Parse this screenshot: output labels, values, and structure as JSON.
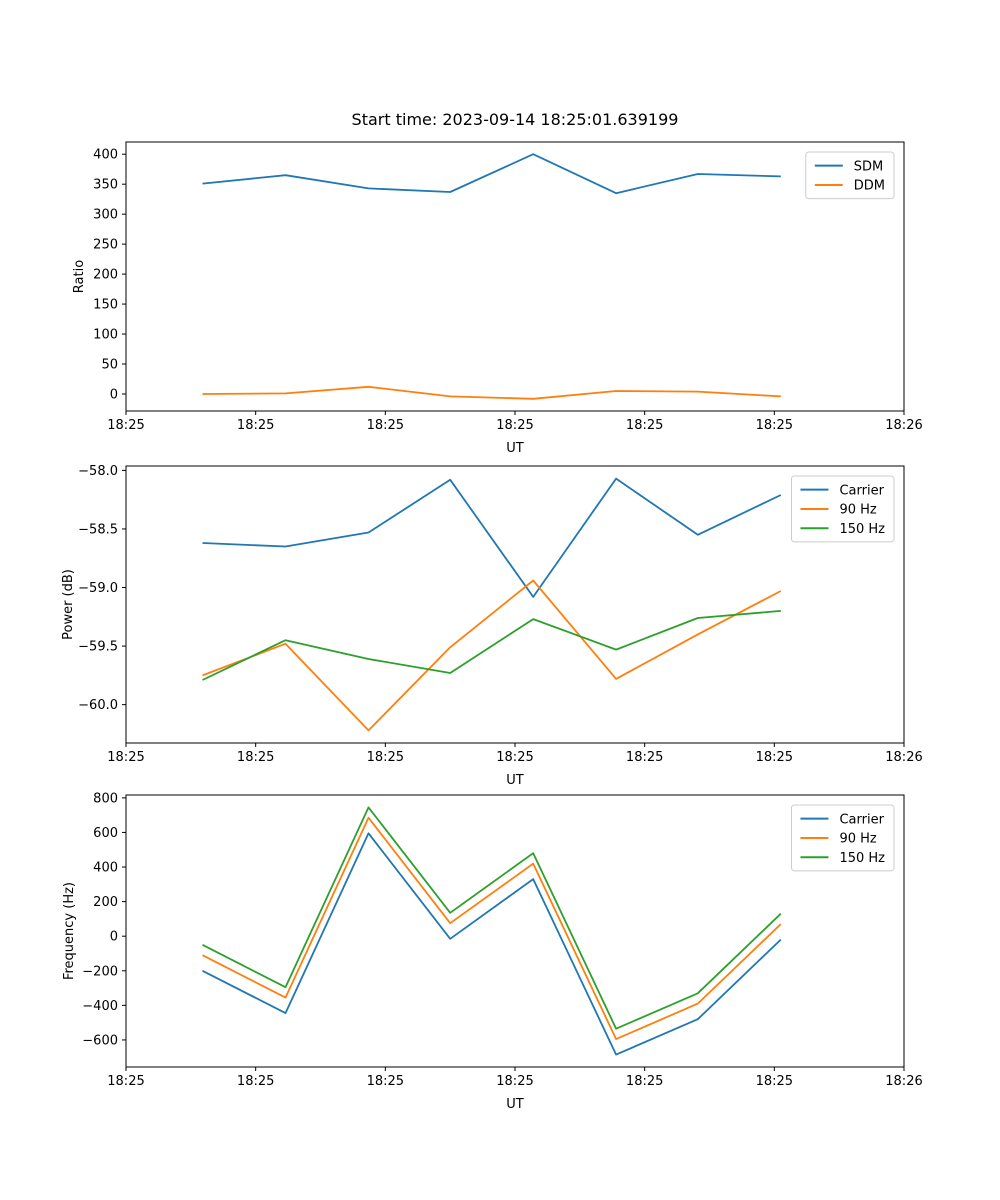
{
  "figure": {
    "title": "Start time: 2023-09-14 18:25:01.639199",
    "background_color": "#ffffff",
    "accent_colors": {
      "blue": "#1f77b4",
      "orange": "#ff7f0e",
      "green": "#2ca02c"
    }
  },
  "chart_data": [
    {
      "type": "line",
      "key": "ratio",
      "title": "Start time: 2023-09-14 18:25:01.639199",
      "xlabel": "UT",
      "ylabel": "Ratio",
      "grid": false,
      "legend_position": "upper right",
      "xlim_seconds": [
        0,
        60
      ],
      "x_tick_seconds": [
        0,
        10,
        20,
        30,
        40,
        50,
        60
      ],
      "x_tick_labels": [
        "18:25",
        "18:25",
        "18:25",
        "18:25",
        "18:25",
        "18:25",
        "18:26"
      ],
      "ylim": [
        -28.4,
        420.4
      ],
      "y_tick_values": [
        0,
        50,
        100,
        150,
        200,
        250,
        300,
        350,
        400
      ],
      "y_tick_labels": [
        "0",
        "50",
        "100",
        "150",
        "200",
        "250",
        "300",
        "350",
        "400"
      ],
      "x_seconds": [
        5.9,
        12.3,
        18.7,
        25.0,
        31.4,
        37.8,
        44.1,
        50.5
      ],
      "series": [
        {
          "name": "SDM",
          "color": "#1f77b4",
          "values": [
            351,
            365,
            343,
            337,
            400,
            335,
            367,
            363
          ]
        },
        {
          "name": "DDM",
          "color": "#ff7f0e",
          "values": [
            0,
            1,
            12,
            -4,
            -8,
            5,
            4,
            -4
          ]
        }
      ],
      "legend": [
        "SDM",
        "DDM"
      ]
    },
    {
      "type": "line",
      "key": "power",
      "title": "",
      "xlabel": "UT",
      "ylabel": "Power (dB)",
      "grid": false,
      "legend_position": "upper right",
      "xlim_seconds": [
        0,
        60
      ],
      "x_tick_seconds": [
        0,
        10,
        20,
        30,
        40,
        50,
        60
      ],
      "x_tick_labels": [
        "18:25",
        "18:25",
        "18:25",
        "18:25",
        "18:25",
        "18:25",
        "18:26"
      ],
      "ylim": [
        -60.3275,
        -57.9625
      ],
      "y_tick_values": [
        -58.0,
        -58.5,
        -59.0,
        -59.5,
        -60.0
      ],
      "y_tick_labels": [
        "−58.0",
        "−58.5",
        "−59.0",
        "−59.5",
        "−60.0"
      ],
      "x_seconds": [
        5.9,
        12.3,
        18.7,
        25.0,
        31.4,
        37.8,
        44.1,
        50.5
      ],
      "series": [
        {
          "name": "Carrier",
          "color": "#1f77b4",
          "values": [
            -58.62,
            -58.65,
            -58.53,
            -58.08,
            -59.08,
            -58.07,
            -58.55,
            -58.21
          ]
        },
        {
          "name": "90 Hz",
          "color": "#ff7f0e",
          "values": [
            -59.75,
            -59.48,
            -60.22,
            -59.51,
            -58.94,
            -59.78,
            -59.4,
            -59.03
          ]
        },
        {
          "name": "150 Hz",
          "color": "#2ca02c",
          "values": [
            -59.79,
            -59.45,
            -59.61,
            -59.73,
            -59.27,
            -59.53,
            -59.26,
            -59.2
          ]
        }
      ],
      "legend": [
        "Carrier",
        "90 Hz",
        "150 Hz"
      ]
    },
    {
      "type": "line",
      "key": "frequency",
      "title": "",
      "xlabel": "UT",
      "ylabel": "Frequency (Hz)",
      "grid": false,
      "legend_position": "upper right",
      "xlim_seconds": [
        0,
        60
      ],
      "x_tick_seconds": [
        0,
        10,
        20,
        30,
        40,
        50,
        60
      ],
      "x_tick_labels": [
        "18:25",
        "18:25",
        "18:25",
        "18:25",
        "18:25",
        "18:25",
        "18:26"
      ],
      "ylim": [
        -756.5,
        816.5
      ],
      "y_tick_values": [
        800,
        600,
        400,
        200,
        0,
        -200,
        -400,
        -600
      ],
      "y_tick_labels": [
        "800",
        "600",
        "400",
        "200",
        "0",
        "−200",
        "−400",
        "−600"
      ],
      "x_seconds": [
        5.9,
        12.3,
        18.7,
        25.0,
        31.4,
        37.8,
        44.1,
        50.5
      ],
      "series": [
        {
          "name": "Carrier",
          "color": "#1f77b4",
          "values": [
            -200,
            -445,
            595,
            -15,
            330,
            -685,
            -480,
            -20
          ]
        },
        {
          "name": "90 Hz",
          "color": "#ff7f0e",
          "values": [
            -110,
            -355,
            685,
            75,
            420,
            -595,
            -390,
            70
          ]
        },
        {
          "name": "150 Hz",
          "color": "#2ca02c",
          "values": [
            -50,
            -295,
            745,
            135,
            480,
            -535,
            -330,
            130
          ]
        }
      ],
      "legend": [
        "Carrier",
        "90 Hz",
        "150 Hz"
      ]
    }
  ]
}
